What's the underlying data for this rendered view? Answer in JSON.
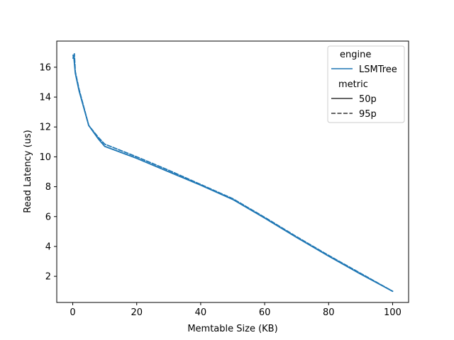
{
  "chart_data": {
    "type": "line",
    "xlabel": "Memtable Size (KB)",
    "ylabel": "Read Latency (us)",
    "xlim": [
      -5,
      105
    ],
    "ylim": [
      0.25,
      17.75
    ],
    "xticks": [
      0,
      20,
      40,
      60,
      80,
      100
    ],
    "yticks": [
      2,
      4,
      6,
      8,
      10,
      12,
      14,
      16
    ],
    "grid": false,
    "legend_placement": "top-right",
    "legend": {
      "hue_title": "engine",
      "hue_entries": [
        {
          "label": "LSMTree",
          "color": "#1f77b4"
        }
      ],
      "style_title": "metric",
      "style_entries": [
        {
          "label": "50p",
          "dash": "solid"
        },
        {
          "label": "95p",
          "dash": "dashed"
        }
      ]
    },
    "series": [
      {
        "engine": "LSMTree",
        "metric": "50p",
        "color": "#1f77b4",
        "dash": "solid",
        "x": [
          0.1,
          0.3,
          0.5,
          0.8,
          1,
          2,
          5,
          8,
          10,
          20,
          30,
          40,
          50,
          60,
          70,
          80,
          90,
          100
        ],
        "y": [
          16.6,
          16.8,
          16.3,
          15.6,
          15.4,
          14.4,
          12.1,
          11.2,
          10.7,
          9.9,
          9.0,
          8.1,
          7.15,
          5.9,
          4.6,
          3.35,
          2.15,
          1.0
        ]
      },
      {
        "engine": "LSMTree",
        "metric": "95p",
        "color": "#1f77b4",
        "dash": "dashed",
        "x": [
          0.1,
          0.3,
          0.5,
          0.8,
          1,
          2,
          5,
          8,
          10,
          20,
          30,
          40,
          50,
          60,
          70,
          80,
          90,
          100
        ],
        "y": [
          16.8,
          16.6,
          16.9,
          15.7,
          15.5,
          14.5,
          12.1,
          11.3,
          10.85,
          10.0,
          9.1,
          8.15,
          7.2,
          5.95,
          4.65,
          3.4,
          2.2,
          1.0
        ]
      }
    ]
  }
}
